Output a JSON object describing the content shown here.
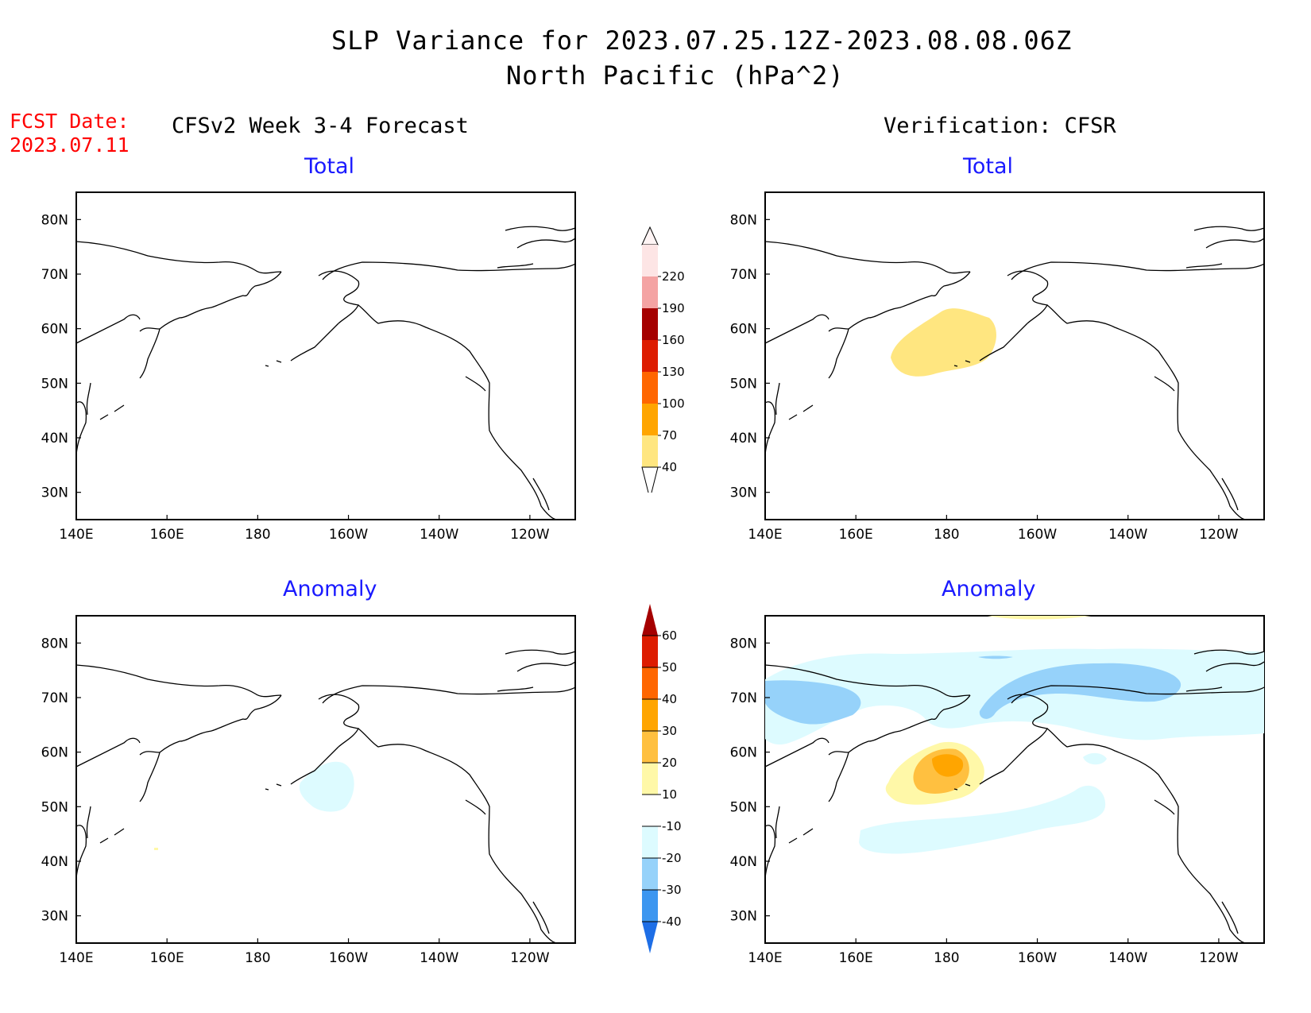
{
  "header": {
    "title_line1": "SLP Variance for 2023.07.25.12Z-2023.08.08.06Z",
    "title_line2": "North Pacific (hPa^2)",
    "fcst_label": "FCST Date:",
    "fcst_date": "2023.07.11",
    "left_model": "CFSv2 Week 3-4 Forecast",
    "right_model": "Verification: CFSR"
  },
  "panels": [
    {
      "id": "forecast-total",
      "title": "Total"
    },
    {
      "id": "verification-total",
      "title": "Total"
    },
    {
      "id": "forecast-anomaly",
      "title": "Anomaly"
    },
    {
      "id": "verification-anomaly",
      "title": "Anomaly"
    }
  ],
  "axes": {
    "x_ticks": [
      "140E",
      "160E",
      "180",
      "160W",
      "140W",
      "120W"
    ],
    "y_ticks": [
      "80N",
      "70N",
      "60N",
      "50N",
      "40N",
      "30N"
    ],
    "lon_range": [
      140,
      250
    ],
    "lat_range": [
      25,
      85
    ]
  },
  "colorbars": {
    "total": {
      "labels": [
        "220",
        "190",
        "160",
        "130",
        "100",
        "70",
        "40"
      ],
      "colors": [
        "#fde5e5",
        "#f4a3a3",
        "#a50000",
        "#dd1c00",
        "#ff6600",
        "#ffa500",
        "#ffe680"
      ]
    },
    "anomaly": {
      "labels": [
        "60",
        "50",
        "40",
        "30",
        "20",
        "10",
        "-10",
        "-20",
        "-30",
        "-40"
      ],
      "colors": [
        "#a50000",
        "#dd1c00",
        "#ff6600",
        "#ffa500",
        "#ffc040",
        "#fff8a8",
        "#ffffff",
        "#ddfbff",
        "#96d2fa",
        "#3c96f0",
        "#1e6ee6"
      ]
    }
  }
}
